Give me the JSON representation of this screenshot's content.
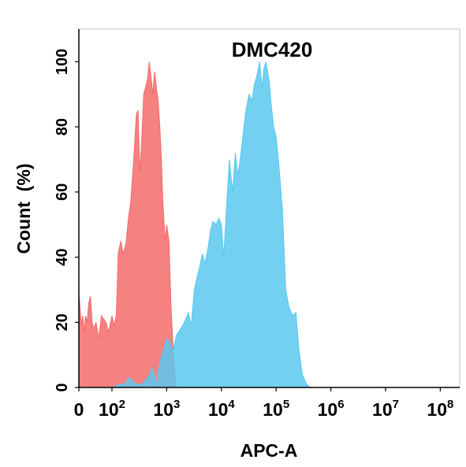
{
  "chart_data": {
    "type": "area",
    "title": "DMC420",
    "xlabel": "APC-A",
    "ylabel": "Count  (%)",
    "x_scale": "biexponential",
    "xlim": [
      0,
      100000000
    ],
    "ylim": [
      0,
      110
    ],
    "y_ticks": [
      "0",
      "20",
      "40",
      "60",
      "80",
      "100"
    ],
    "x_ticks": [
      {
        "value": 0,
        "base": "0",
        "exp": ""
      },
      {
        "value": 100,
        "base": "10",
        "exp": "2"
      },
      {
        "value": 1000,
        "base": "10",
        "exp": "3"
      },
      {
        "value": 10000,
        "base": "10",
        "exp": "4"
      },
      {
        "value": 100000,
        "base": "10",
        "exp": "5"
      },
      {
        "value": 1000000,
        "base": "10",
        "exp": "6"
      },
      {
        "value": 10000000,
        "base": "10",
        "exp": "7"
      },
      {
        "value": 100000000,
        "base": "10",
        "exp": "8"
      }
    ],
    "grid": false,
    "series": [
      {
        "color": "#f36b6b",
        "points": [
          [
            0,
            29
          ],
          [
            4,
            24
          ],
          [
            8,
            19
          ],
          [
            12,
            22
          ],
          [
            16,
            17
          ],
          [
            20,
            22
          ],
          [
            25,
            20
          ],
          [
            30,
            26
          ],
          [
            35,
            28
          ],
          [
            40,
            20
          ],
          [
            45,
            18
          ],
          [
            52,
            20
          ],
          [
            60,
            15
          ],
          [
            68,
            22
          ],
          [
            75,
            21
          ],
          [
            82,
            20
          ],
          [
            90,
            17
          ],
          [
            100,
            22
          ],
          [
            110,
            19
          ],
          [
            120,
            22
          ],
          [
            130,
            41
          ],
          [
            145,
            45
          ],
          [
            160,
            41
          ],
          [
            180,
            44
          ],
          [
            200,
            52
          ],
          [
            220,
            57
          ],
          [
            250,
            70
          ],
          [
            280,
            84
          ],
          [
            300,
            85
          ],
          [
            320,
            66
          ],
          [
            350,
            76
          ],
          [
            380,
            90
          ],
          [
            410,
            92
          ],
          [
            450,
            95
          ],
          [
            480,
            100
          ],
          [
            520,
            95
          ],
          [
            560,
            90
          ],
          [
            600,
            97
          ],
          [
            650,
            92
          ],
          [
            700,
            88
          ],
          [
            750,
            80
          ],
          [
            800,
            70
          ],
          [
            850,
            57
          ],
          [
            900,
            50
          ],
          [
            950,
            45
          ],
          [
            1000,
            50
          ],
          [
            1100,
            45
          ],
          [
            1200,
            25
          ],
          [
            1350,
            8
          ],
          [
            1500,
            0
          ]
        ]
      },
      {
        "color": "#5bc8ef",
        "points": [
          [
            100,
            0
          ],
          [
            140,
            1
          ],
          [
            170,
            1
          ],
          [
            200,
            3
          ],
          [
            240,
            2
          ],
          [
            280,
            1
          ],
          [
            350,
            1
          ],
          [
            450,
            3
          ],
          [
            550,
            6
          ],
          [
            650,
            1
          ],
          [
            750,
            8
          ],
          [
            850,
            11
          ],
          [
            1000,
            15
          ],
          [
            1150,
            14
          ],
          [
            1300,
            11
          ],
          [
            1500,
            16
          ],
          [
            1800,
            18
          ],
          [
            2100,
            20
          ],
          [
            2500,
            23
          ],
          [
            2800,
            19
          ],
          [
            3200,
            30
          ],
          [
            3600,
            34
          ],
          [
            4000,
            37
          ],
          [
            4500,
            41
          ],
          [
            5000,
            38
          ],
          [
            5600,
            42
          ],
          [
            6300,
            48
          ],
          [
            7000,
            51
          ],
          [
            8000,
            50
          ],
          [
            9000,
            52
          ],
          [
            10000,
            50
          ],
          [
            11000,
            40
          ],
          [
            12500,
            56
          ],
          [
            14000,
            70
          ],
          [
            16000,
            60
          ],
          [
            18000,
            72
          ],
          [
            20000,
            65
          ],
          [
            22000,
            70
          ],
          [
            25000,
            78
          ],
          [
            28000,
            85
          ],
          [
            32000,
            90
          ],
          [
            36000,
            88
          ],
          [
            40000,
            93
          ],
          [
            45000,
            96
          ],
          [
            50000,
            100
          ],
          [
            55000,
            92
          ],
          [
            60000,
            98
          ],
          [
            65000,
            100
          ],
          [
            70000,
            97
          ],
          [
            75000,
            94
          ],
          [
            80000,
            88
          ],
          [
            90000,
            80
          ],
          [
            100000,
            77
          ],
          [
            110000,
            70
          ],
          [
            130000,
            55
          ],
          [
            150000,
            30
          ],
          [
            170000,
            25
          ],
          [
            200000,
            22
          ],
          [
            230000,
            23
          ],
          [
            260000,
            12
          ],
          [
            300000,
            4
          ],
          [
            360000,
            1
          ],
          [
            420000,
            0
          ]
        ]
      }
    ]
  }
}
